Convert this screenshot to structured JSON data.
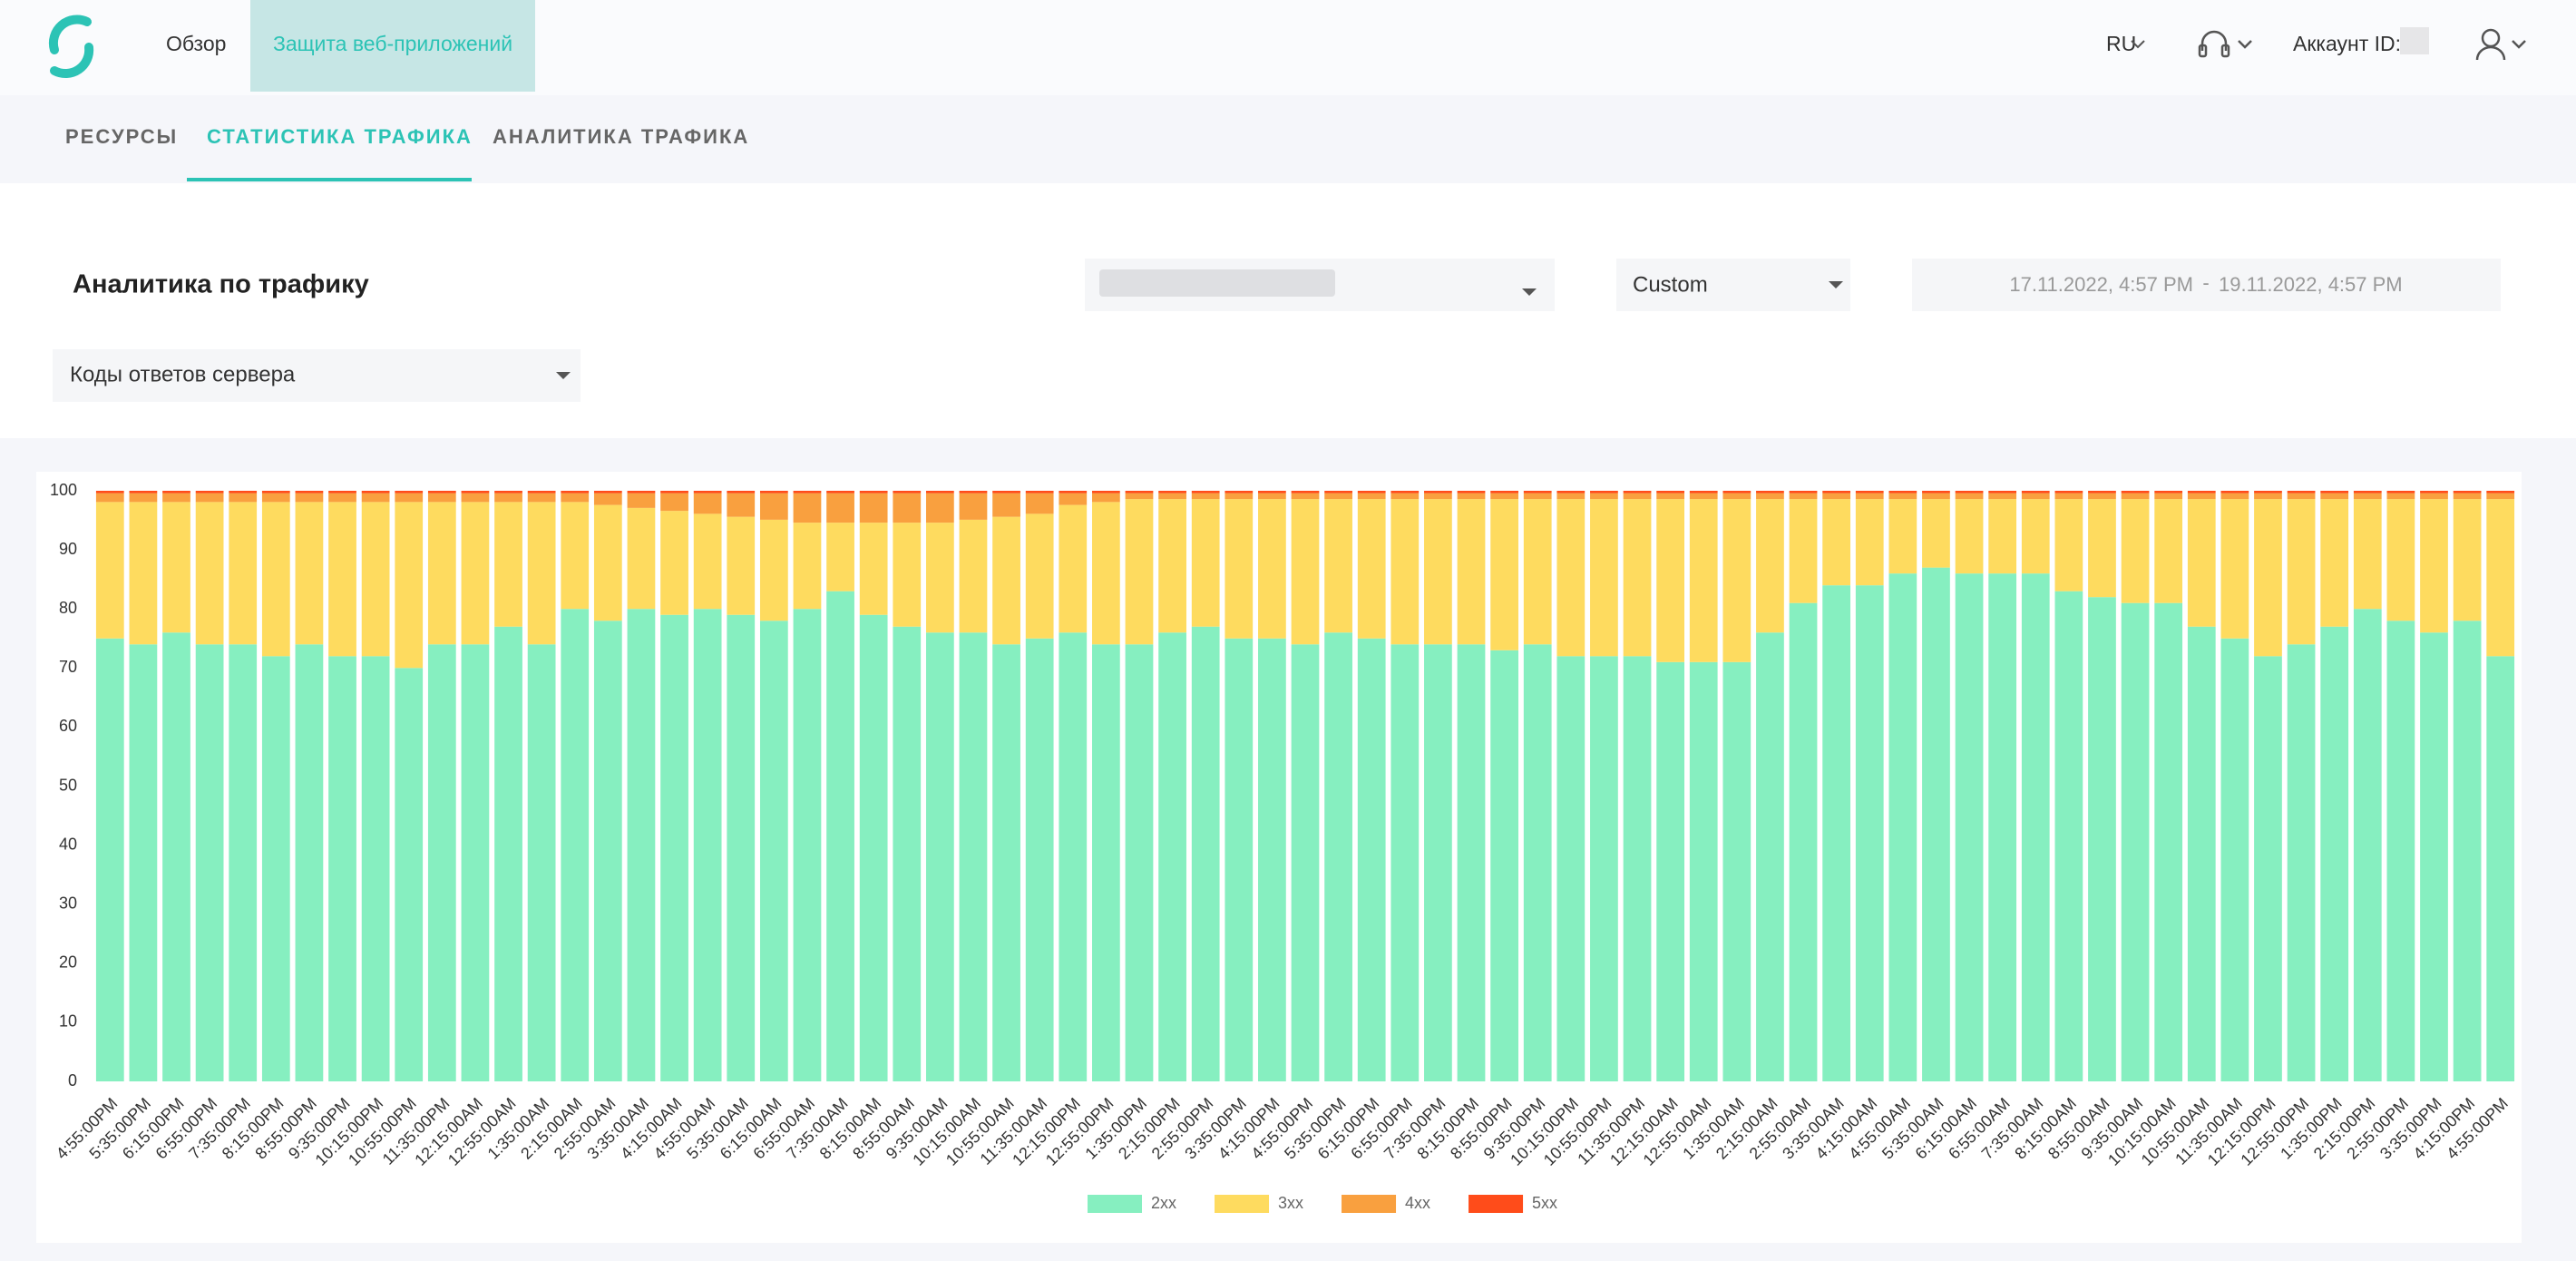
{
  "header": {
    "nav": [
      "Обзор",
      "Защита веб-приложений"
    ],
    "language": "RU",
    "account": "Аккаунт ID:"
  },
  "tabs": [
    "РЕСУРСЫ",
    "СТАТИСТИКА ТРАФИКА",
    "АНАЛИТИКА ТРАФИКА"
  ],
  "page_title": "Аналитика по трафику",
  "filters": {
    "period": "Custom",
    "date_from": "17.11.2022, 4:57 PM",
    "date_separator": "-",
    "date_to": "19.11.2022, 4:57 PM",
    "metric": "Коды ответов сервера"
  },
  "chart_data": {
    "type": "bar",
    "stacked": true,
    "legend": "bottom",
    "grid": false,
    "ylim": [
      0,
      100
    ],
    "yticks": [
      0,
      10,
      20,
      30,
      40,
      50,
      60,
      70,
      80,
      90,
      100
    ],
    "categories": [
      "4:55:00PM",
      "5:35:00PM",
      "6:15:00PM",
      "6:55:00PM",
      "7:35:00PM",
      "8:15:00PM",
      "8:55:00PM",
      "9:35:00PM",
      "10:15:00PM",
      "10:55:00PM",
      "11:35:00PM",
      "12:15:00AM",
      "12:55:00AM",
      "1:35:00AM",
      "2:15:00AM",
      "2:55:00AM",
      "3:35:00AM",
      "4:15:00AM",
      "4:55:00AM",
      "5:35:00AM",
      "6:15:00AM",
      "6:55:00AM",
      "7:35:00AM",
      "8:15:00AM",
      "8:55:00AM",
      "9:35:00AM",
      "10:15:00AM",
      "10:55:00AM",
      "11:35:00AM",
      "12:15:00PM",
      "12:55:00PM",
      "1:35:00PM",
      "2:15:00PM",
      "2:55:00PM",
      "3:35:00PM",
      "4:15:00PM",
      "4:55:00PM",
      "5:35:00PM",
      "6:15:00PM",
      "6:55:00PM",
      "7:35:00PM",
      "8:15:00PM",
      "8:55:00PM",
      "9:35:00PM",
      "10:15:00PM",
      "10:55:00PM",
      "11:35:00PM",
      "12:15:00AM",
      "12:55:00AM",
      "1:35:00AM",
      "2:15:00AM",
      "2:55:00AM",
      "3:35:00AM",
      "4:15:00AM",
      "4:55:00AM",
      "5:35:00AM",
      "6:15:00AM",
      "6:55:00AM",
      "7:35:00AM",
      "8:15:00AM",
      "8:55:00AM",
      "9:35:00AM",
      "10:15:00AM",
      "10:55:00AM",
      "11:35:00AM",
      "12:15:00PM",
      "12:55:00PM",
      "1:35:00PM",
      "2:15:00PM",
      "2:55:00PM",
      "3:35:00PM",
      "4:15:00PM",
      "4:55:00PM"
    ],
    "series": [
      {
        "name": "2xx",
        "color": "#86efc0",
        "values": [
          75,
          74,
          76,
          74,
          74,
          72,
          74,
          72,
          72,
          70,
          74,
          74,
          77,
          74,
          80,
          78,
          80,
          79,
          80,
          79,
          78,
          80,
          83,
          79,
          77,
          76,
          76,
          74,
          75,
          76,
          74,
          74,
          76,
          77,
          75,
          75,
          74,
          76,
          75,
          74,
          74,
          74,
          73,
          74,
          72,
          72,
          72,
          71,
          71,
          71,
          76,
          81,
          84,
          84,
          86,
          87,
          86,
          86,
          86,
          83,
          82,
          81,
          81,
          77,
          75,
          72,
          74,
          77,
          80,
          78,
          76,
          78,
          72
        ]
      },
      {
        "name": "3xx",
        "color": "#fedb5f",
        "values": [
          23.1,
          24.1,
          22.1,
          24.1,
          24.1,
          26.1,
          24.1,
          26.1,
          26.1,
          28.1,
          24.1,
          24.1,
          21.1,
          24.1,
          18.1,
          19.6,
          17.1,
          17.6,
          16.1,
          16.6,
          17.1,
          14.6,
          11.6,
          15.6,
          17.6,
          18.6,
          19.1,
          21.6,
          21.1,
          21.6,
          24.1,
          24.6,
          22.6,
          21.6,
          23.6,
          23.6,
          24.6,
          22.6,
          23.6,
          24.6,
          24.6,
          24.6,
          25.6,
          24.6,
          26.6,
          26.6,
          26.6,
          27.6,
          27.6,
          27.6,
          22.6,
          17.6,
          14.6,
          14.6,
          12.6,
          11.6,
          12.6,
          12.6,
          12.6,
          15.6,
          16.6,
          17.6,
          17.6,
          21.6,
          23.6,
          26.6,
          24.6,
          21.6,
          18.6,
          20.6,
          22.6,
          20.6,
          26.6
        ]
      },
      {
        "name": "4xx",
        "color": "#f9a03f",
        "values": [
          1.5,
          1.5,
          1.5,
          1.5,
          1.5,
          1.5,
          1.5,
          1.5,
          1.5,
          1.5,
          1.5,
          1.5,
          1.5,
          1.5,
          1.5,
          2,
          2.5,
          3,
          3.5,
          4,
          4.5,
          5,
          5,
          5,
          5,
          5,
          4.5,
          4,
          3.5,
          2,
          1.5,
          1,
          1,
          1,
          1,
          1,
          1,
          1,
          1,
          1,
          1,
          1,
          1,
          1,
          1,
          1,
          1,
          1,
          1,
          1,
          1,
          1,
          1,
          1,
          1,
          1,
          1,
          1,
          1,
          1,
          1,
          1,
          1,
          1,
          1,
          1,
          1,
          1,
          1,
          1,
          1,
          1,
          1
        ]
      },
      {
        "name": "5xx",
        "color": "#ff4c1a",
        "values": [
          0.4,
          0.4,
          0.4,
          0.4,
          0.4,
          0.4,
          0.4,
          0.4,
          0.4,
          0.4,
          0.4,
          0.4,
          0.4,
          0.4,
          0.4,
          0.4,
          0.4,
          0.4,
          0.4,
          0.4,
          0.4,
          0.4,
          0.4,
          0.4,
          0.4,
          0.4,
          0.4,
          0.4,
          0.4,
          0.4,
          0.4,
          0.4,
          0.4,
          0.4,
          0.4,
          0.4,
          0.4,
          0.4,
          0.4,
          0.4,
          0.4,
          0.4,
          0.4,
          0.4,
          0.4,
          0.4,
          0.4,
          0.4,
          0.4,
          0.4,
          0.4,
          0.4,
          0.4,
          0.4,
          0.4,
          0.4,
          0.4,
          0.4,
          0.4,
          0.4,
          0.4,
          0.4,
          0.4,
          0.4,
          0.4,
          0.4,
          0.4,
          0.4,
          0.4,
          0.4,
          0.4,
          0.4,
          0.4
        ]
      }
    ]
  }
}
